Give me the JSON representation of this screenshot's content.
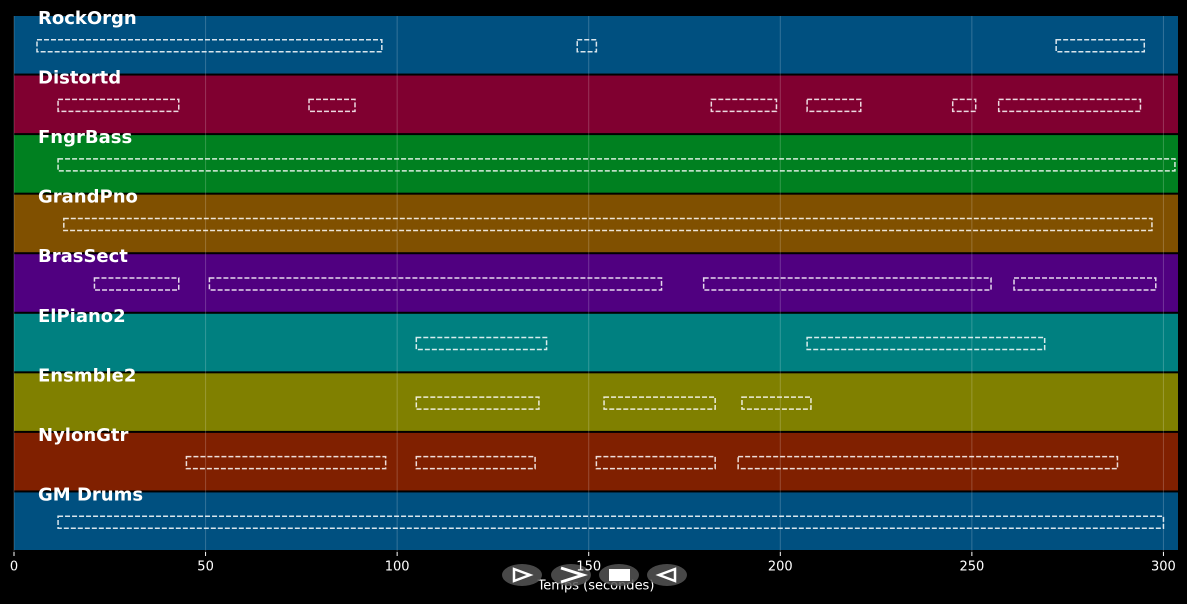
{
  "chart_data": {
    "type": "pianoroll",
    "xlabel": "Temps (secondes)",
    "xlim": [
      0,
      303.8
    ],
    "xticks": [
      0,
      50,
      100,
      150,
      200,
      250,
      300
    ],
    "grid": true,
    "series": [
      {
        "name": "RockOrgn",
        "color": "#005080",
        "segments": [
          [
            6,
            96
          ],
          [
            147,
            152
          ],
          [
            272,
            295
          ]
        ]
      },
      {
        "name": "Distortd",
        "color": "#800030",
        "segments": [
          [
            11.5,
            43
          ],
          [
            77,
            89
          ],
          [
            182,
            199
          ],
          [
            207,
            221
          ],
          [
            245,
            251
          ],
          [
            257,
            294
          ]
        ]
      },
      {
        "name": "FngrBass",
        "color": "#008020",
        "segments": [
          [
            11.5,
            303
          ]
        ]
      },
      {
        "name": "GrandPno",
        "color": "#805000",
        "segments": [
          [
            13,
            297
          ]
        ]
      },
      {
        "name": "BrasSect",
        "color": "#500080",
        "segments": [
          [
            21,
            43
          ],
          [
            51,
            169
          ],
          [
            180,
            255
          ],
          [
            261,
            298
          ]
        ]
      },
      {
        "name": "ElPiano2",
        "color": "#008080",
        "segments": [
          [
            105,
            139
          ],
          [
            207,
            269
          ]
        ]
      },
      {
        "name": "Ensmble2",
        "color": "#808000",
        "segments": [
          [
            105,
            137
          ],
          [
            154,
            183
          ],
          [
            190,
            208
          ]
        ]
      },
      {
        "name": "NylonGtr",
        "color": "#802000",
        "segments": [
          [
            45,
            97
          ],
          [
            105,
            136
          ],
          [
            152,
            183
          ],
          [
            189,
            288
          ]
        ]
      },
      {
        "name": "GM Drums",
        "color": "#005080",
        "segments": [
          [
            11.5,
            300
          ]
        ]
      }
    ]
  }
}
